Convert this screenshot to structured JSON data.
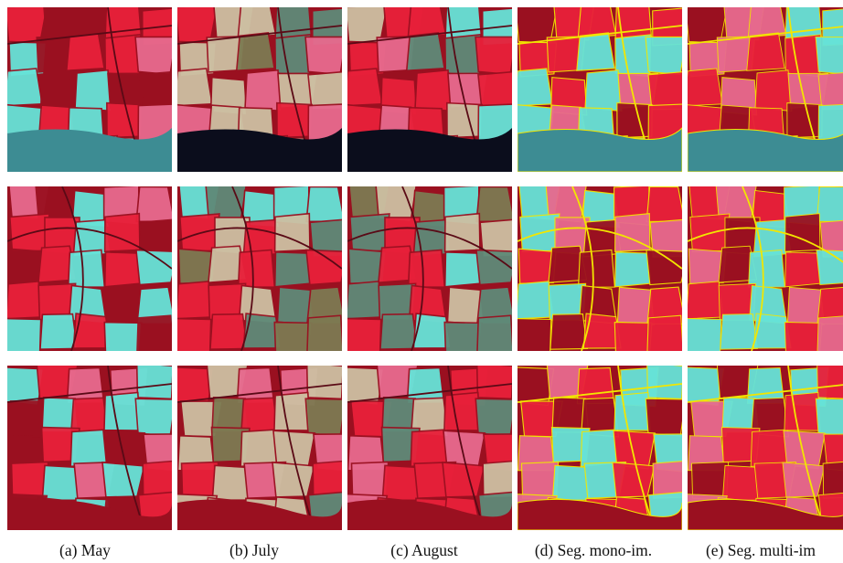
{
  "figure": {
    "captions": [
      "(a) May",
      "(b) July",
      "(c) August",
      "(d) Seg. mono-im.",
      "(e) Seg. multi-im"
    ],
    "columns": [
      {
        "key": "may",
        "style": "may"
      },
      {
        "key": "july",
        "style": "july"
      },
      {
        "key": "august",
        "style": "august"
      },
      {
        "key": "seg_mono",
        "style": "seg_mono"
      },
      {
        "key": "seg_multi",
        "style": "seg_multi"
      }
    ],
    "rows": [
      {
        "key": "site-1",
        "has_water": true
      },
      {
        "key": "site-2",
        "has_water": false
      },
      {
        "key": "site-3",
        "has_forest": true
      }
    ],
    "palette": {
      "red": "#e8203a",
      "dark_red": "#9a1020",
      "cyan": "#66e3d8",
      "pink": "#e76a8e",
      "olive": "#7d7a52",
      "beige": "#cdbfa2",
      "green_grey": "#5f8a78",
      "water_may": "#3d8c93",
      "water_dark": "#0b0d1c",
      "segment_line": "#f2e600"
    }
  }
}
